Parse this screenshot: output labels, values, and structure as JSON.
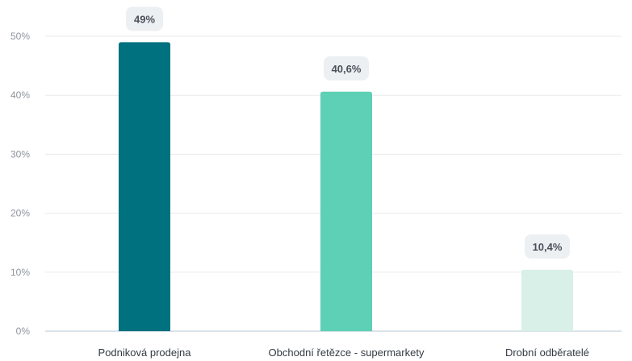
{
  "chart_data": {
    "type": "bar",
    "categories": [
      "Podniková prodejna",
      "Obchodní řetězce - supermarkety",
      "Drobní odběratelé"
    ],
    "values": [
      49,
      40.6,
      10.4
    ],
    "data_labels": [
      "49%",
      "40,6%",
      "10,4%"
    ],
    "bar_colors": [
      "#00717f",
      "#5ed0b5",
      "#d8f0e7"
    ],
    "ylim": [
      0,
      50
    ],
    "yticks": [
      0,
      10,
      20,
      30,
      40,
      50
    ],
    "ytick_labels": [
      "0%",
      "10%",
      "20%",
      "30%",
      "40%",
      "50%"
    ],
    "grid": true,
    "legend": "none"
  }
}
